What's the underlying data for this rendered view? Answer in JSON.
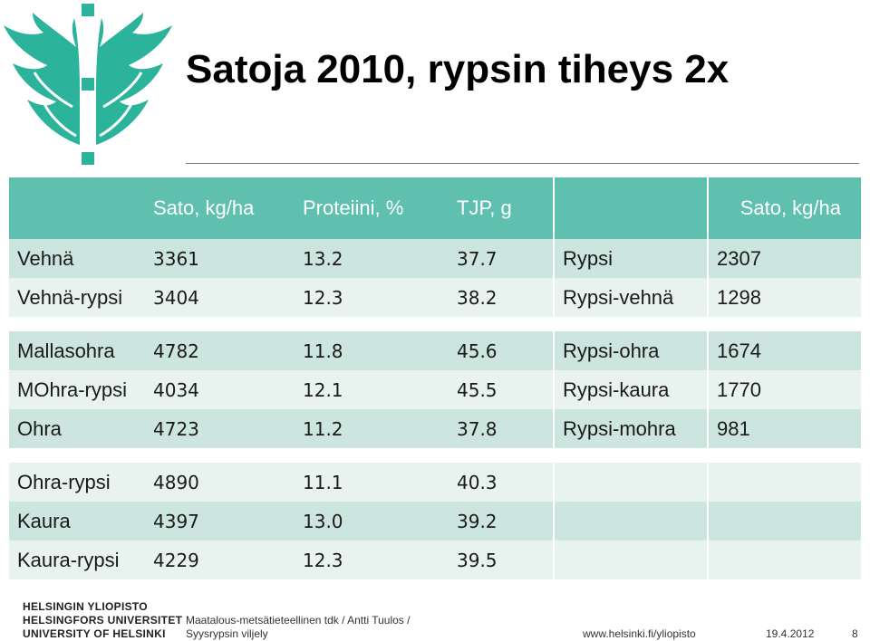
{
  "title": "Satoja 2010, rypsin tiheys 2x",
  "table": {
    "headers": [
      "",
      "Sato, kg/ha",
      "Proteiini, %",
      "TJP, g",
      "",
      "Sato, kg/ha"
    ],
    "rows": [
      [
        "Vehnä",
        "3361",
        "13.2",
        "37.7",
        "Rypsi",
        "2307"
      ],
      [
        "Vehnä-rypsi",
        "3404",
        "12.3",
        "38.2",
        "Rypsi-vehnä",
        "1298"
      ],
      [
        "Mallasohra",
        "4782",
        "11.8",
        "45.6",
        "Rypsi-ohra",
        "1674"
      ],
      [
        "MOhra-rypsi",
        "4034",
        "12.1",
        "45.5",
        "Rypsi-kaura",
        "1770"
      ],
      [
        "Ohra",
        "4723",
        "11.2",
        "37.8",
        "Rypsi-mohra",
        "981"
      ],
      [
        "Ohra-rypsi",
        "4890",
        "11.1",
        "40.3",
        "",
        ""
      ],
      [
        "Kaura",
        "4397",
        "13.0",
        "39.2",
        "",
        ""
      ],
      [
        "Kaura-rypsi",
        "4229",
        "12.3",
        "39.5",
        "",
        ""
      ]
    ]
  },
  "footer": {
    "university": [
      "HELSINGIN YLIOPISTO",
      "HELSINGFORS UNIVERSITET",
      "UNIVERSITY OF HELSINKI"
    ],
    "author_line1": "Maatalous-metsätieteellinen tdk / Antti Tuulos /",
    "author_line2": "Syysrypsin viljely",
    "url": "www.helsinki.fi/yliopisto",
    "date": "19.4.2012",
    "page": "8"
  },
  "colors": {
    "header": "#5fc0b0",
    "band_dark": "#cde5df",
    "band_light": "#e8f2ef",
    "logo": "#2bb39b"
  },
  "icons": {
    "logo": "university-of-helsinki-flame-logo"
  }
}
